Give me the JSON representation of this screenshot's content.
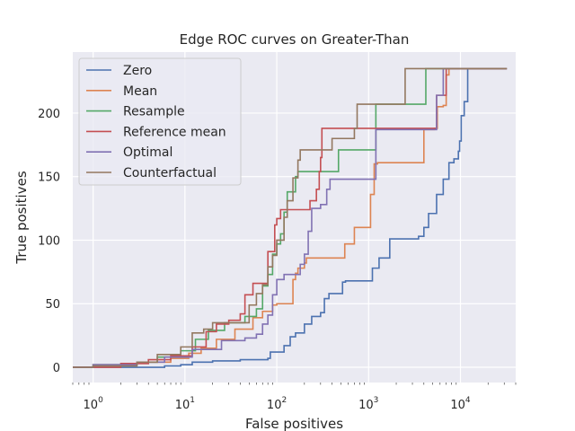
{
  "chart_data": {
    "type": "line",
    "title": "Edge ROC curves on Greater-Than",
    "xlabel": "False positives",
    "ylabel": "True positives",
    "xscale": "log",
    "xlim": [
      0.6,
      40000
    ],
    "ylim": [
      -12,
      248
    ],
    "x_ticks": [
      {
        "value": 1,
        "base": "10",
        "exp": "0"
      },
      {
        "value": 10,
        "base": "10",
        "exp": "1"
      },
      {
        "value": 100,
        "base": "10",
        "exp": "2"
      },
      {
        "value": 1000,
        "base": "10",
        "exp": "3"
      },
      {
        "value": 10000,
        "base": "10",
        "exp": "4"
      }
    ],
    "y_ticks": [
      0,
      50,
      100,
      150,
      200
    ],
    "grid": true,
    "legend_position": "top-left",
    "series": [
      {
        "name": "Zero",
        "color": "#4c72b0",
        "x": [
          0.6,
          1,
          6,
          9,
          12,
          20,
          40,
          80,
          85,
          120,
          140,
          160,
          200,
          240,
          300,
          330,
          370,
          520,
          560,
          700,
          900,
          1100,
          1300,
          1700,
          3500,
          4000,
          4500,
          5500,
          6500,
          7500,
          8500,
          9500,
          9800,
          10200,
          11000,
          12000,
          20000,
          32000
        ],
        "y": [
          0,
          0,
          1,
          2,
          4,
          5,
          6,
          7,
          12,
          17,
          24,
          27,
          34,
          40,
          43,
          54,
          58,
          67,
          68,
          68,
          68,
          78,
          86,
          101,
          103,
          110,
          121,
          136,
          148,
          161,
          164,
          170,
          178,
          198,
          209,
          235,
          235,
          235
        ]
      },
      {
        "name": "Mean",
        "color": "#dd8452",
        "x": [
          0.6,
          1,
          2.5,
          4,
          7,
          11,
          15,
          22,
          35,
          55,
          70,
          90,
          100,
          130,
          150,
          160,
          170,
          200,
          210,
          240,
          270,
          400,
          550,
          700,
          900,
          1050,
          1150,
          1200,
          1250,
          2000,
          4000,
          5200,
          5600,
          6000,
          6500,
          7000,
          7500,
          7800,
          8000,
          32000
        ],
        "y": [
          0,
          2,
          3,
          4,
          7,
          11,
          15,
          22,
          30,
          39,
          44,
          49,
          50,
          50,
          69,
          74,
          78,
          82,
          86,
          86,
          86,
          86,
          97,
          110,
          110,
          136,
          160,
          160,
          161,
          161,
          187,
          188,
          205,
          205,
          206,
          230,
          235,
          235,
          235,
          235
        ]
      },
      {
        "name": "Resample",
        "color": "#55a868",
        "x": [
          0.6,
          1,
          3,
          5,
          9,
          13,
          18,
          27,
          45,
          60,
          70,
          80,
          90,
          100,
          110,
          120,
          130,
          160,
          170,
          250,
          300,
          470,
          1200,
          1250,
          2000,
          4100,
          4200,
          32000
        ],
        "y": [
          0,
          2,
          4,
          8,
          13,
          22,
          29,
          35,
          40,
          46,
          64,
          73,
          89,
          97,
          105,
          122,
          138,
          150,
          154,
          154,
          154,
          171,
          207,
          207,
          207,
          207,
          235,
          235
        ]
      },
      {
        "name": "Reference mean",
        "color": "#c44e52",
        "x": [
          0.6,
          2,
          4,
          7,
          12,
          17,
          22,
          30,
          40,
          45,
          55,
          80,
          95,
          100,
          110,
          160,
          180,
          200,
          230,
          270,
          290,
          300,
          310,
          600,
          5000,
          5500,
          7000,
          32000
        ],
        "y": [
          0,
          3,
          6,
          9,
          16,
          28,
          34,
          37,
          42,
          57,
          66,
          91,
          112,
          117,
          124,
          124,
          124,
          124,
          131,
          140,
          154,
          165,
          188,
          188,
          188,
          214,
          235,
          235
        ]
      },
      {
        "name": "Optimal",
        "color": "#8172b3",
        "x": [
          0.6,
          1,
          3,
          6,
          12,
          25,
          45,
          60,
          70,
          80,
          90,
          100,
          120,
          170,
          180,
          200,
          220,
          240,
          300,
          350,
          380,
          1200,
          5500,
          6500,
          32000
        ],
        "y": [
          0,
          2,
          4,
          8,
          14,
          21,
          23,
          26,
          34,
          41,
          57,
          69,
          73,
          73,
          81,
          89,
          107,
          125,
          128,
          140,
          148,
          187,
          214,
          235,
          235
        ]
      },
      {
        "name": "Counterfactual",
        "color": "#937860",
        "x": [
          0.6,
          1,
          3,
          5,
          9,
          12,
          16,
          20,
          30,
          50,
          60,
          70,
          80,
          90,
          100,
          120,
          130,
          150,
          170,
          180,
          400,
          700,
          750,
          2500,
          32000
        ],
        "y": [
          0,
          1,
          4,
          10,
          16,
          27,
          30,
          35,
          35,
          49,
          58,
          65,
          79,
          88,
          100,
          118,
          131,
          149,
          163,
          171,
          180,
          188,
          207,
          235,
          235
        ]
      }
    ]
  }
}
